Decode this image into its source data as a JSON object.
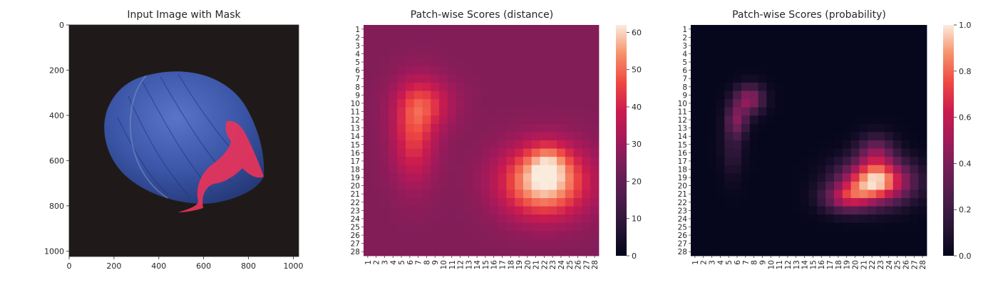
{
  "figure": {
    "panel1": {
      "title": "Input Image with Mask",
      "xticks": [
        "0",
        "200",
        "400",
        "600",
        "800",
        "1000"
      ],
      "yticks": [
        "0",
        "200",
        "400",
        "600",
        "800",
        "1000"
      ],
      "image": "hazelnut-photo-with-red-defect-mask"
    },
    "panel2": {
      "title": "Patch-wise Scores (distance)",
      "colorbar_ticks": [
        "0",
        "10",
        "20",
        "30",
        "40",
        "50",
        "60"
      ],
      "colormap": "rocket"
    },
    "panel3": {
      "title": "Patch-wise Scores (probability)",
      "colorbar_ticks": [
        "0.0",
        "0.2",
        "0.4",
        "0.6",
        "0.8",
        "1.0"
      ],
      "colormap": "rocket"
    }
  },
  "chart_data": [
    {
      "type": "image",
      "title": "Input Image with Mask",
      "xlim": [
        0,
        1024
      ],
      "ylim": [
        1024,
        0
      ],
      "xticks": [
        0,
        200,
        400,
        600,
        800,
        1000
      ],
      "yticks": [
        0,
        200,
        400,
        600,
        800,
        1000
      ]
    },
    {
      "type": "heatmap",
      "title": "Patch-wise Scores (distance)",
      "rows": 28,
      "cols": 28,
      "row_labels": [
        "1",
        "2",
        "3",
        "4",
        "5",
        "6",
        "7",
        "8",
        "9",
        "10",
        "11",
        "12",
        "13",
        "14",
        "15",
        "16",
        "17",
        "18",
        "19",
        "20",
        "21",
        "22",
        "23",
        "24",
        "25",
        "26",
        "27",
        "28"
      ],
      "col_labels": [
        "1",
        "2",
        "3",
        "4",
        "5",
        "6",
        "7",
        "8",
        "9",
        "10",
        "11",
        "12",
        "13",
        "14",
        "15",
        "16",
        "17",
        "18",
        "19",
        "20",
        "21",
        "22",
        "23",
        "24",
        "25",
        "26",
        "27",
        "28"
      ],
      "vmin": 0,
      "vmax": 62,
      "colorbar_ticks": [
        0,
        10,
        20,
        30,
        40,
        50,
        60
      ],
      "background": 26,
      "blobs": [
        {
          "r": 10,
          "c": 8,
          "sr": 2.2,
          "sc": 2.4,
          "a": 14
        },
        {
          "r": 14,
          "c": 6.5,
          "sr": 4.0,
          "sc": 1.8,
          "a": 18
        },
        {
          "r": 19.5,
          "c": 22,
          "sr": 3.0,
          "sc": 3.6,
          "a": 36
        },
        {
          "r": 17,
          "c": 22.5,
          "sr": 1.6,
          "sc": 1.6,
          "a": 10
        }
      ]
    },
    {
      "type": "heatmap",
      "title": "Patch-wise Scores (probability)",
      "rows": 28,
      "cols": 28,
      "row_labels": [
        "1",
        "2",
        "3",
        "4",
        "5",
        "6",
        "7",
        "8",
        "9",
        "10",
        "11",
        "12",
        "13",
        "14",
        "15",
        "16",
        "17",
        "18",
        "19",
        "20",
        "21",
        "22",
        "23",
        "24",
        "25",
        "26",
        "27",
        "28"
      ],
      "col_labels": [
        "1",
        "2",
        "3",
        "4",
        "5",
        "6",
        "7",
        "8",
        "9",
        "10",
        "11",
        "12",
        "13",
        "14",
        "15",
        "16",
        "17",
        "18",
        "19",
        "20",
        "21",
        "22",
        "23",
        "24",
        "25",
        "26",
        "27",
        "28"
      ],
      "vmin": 0,
      "vmax": 1,
      "colorbar_ticks": [
        0.0,
        0.2,
        0.4,
        0.6,
        0.8,
        1.0
      ],
      "background": 0.01,
      "blobs": [
        {
          "r": 9.5,
          "c": 7.5,
          "sr": 1.2,
          "sc": 1.2,
          "a": 0.45
        },
        {
          "r": 12,
          "c": 6,
          "sr": 1.4,
          "sc": 0.9,
          "a": 0.35
        },
        {
          "r": 15.5,
          "c": 5.5,
          "sr": 2.5,
          "sc": 0.9,
          "a": 0.15
        },
        {
          "r": 19.5,
          "c": 22.5,
          "sr": 1.8,
          "sc": 2.8,
          "a": 0.95
        },
        {
          "r": 21.5,
          "c": 19,
          "sr": 1.2,
          "sc": 2.0,
          "a": 0.45
        },
        {
          "r": 16,
          "c": 22.5,
          "sr": 1.5,
          "sc": 1.5,
          "a": 0.35
        }
      ]
    }
  ]
}
